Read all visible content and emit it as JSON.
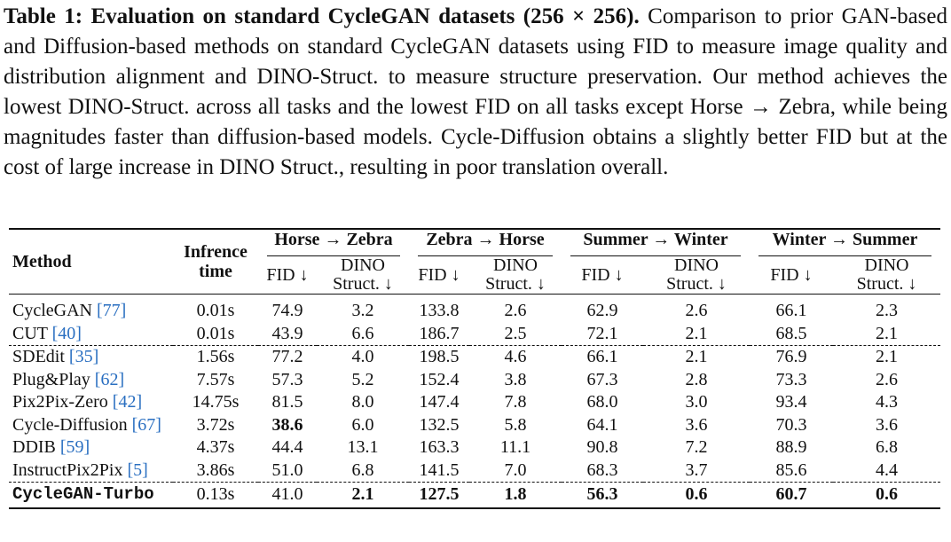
{
  "caption": {
    "title": "Table 1: Evaluation on standard CycleGAN datasets (256 × 256).",
    "text": "Comparison to prior GAN-based and Diffusion-based methods on standard CycleGAN datasets using FID to measure image quality and distribution alignment and DINO-Struct. to measure structure preservation. Our method achieves the lowest DINO-Struct. across all tasks and the lowest FID on all tasks except Horse → Zebra, while being magnitudes faster than diffusion-based models. Cycle-Diffusion obtains a slightly better FID but at the cost of large increase in DINO Struct., resulting in poor translation overall."
  },
  "table": {
    "headers": {
      "method": "Method",
      "time_line1": "Infrence",
      "time_line2": "time",
      "groups": [
        "Horse → Zebra",
        "Zebra → Horse",
        "Summer → Winter",
        "Winter → Summer"
      ],
      "fid": "FID ↓",
      "dino_line1": "DINO",
      "dino_line2": "Struct. ↓"
    },
    "rows": [
      {
        "name": "CycleGAN",
        "cite": "[77]",
        "time": "0.01s",
        "values": [
          "74.9",
          "3.2",
          "133.8",
          "2.6",
          "62.9",
          "2.6",
          "66.1",
          "2.3"
        ]
      },
      {
        "name": "CUT",
        "cite": "[40]",
        "time": "0.01s",
        "values": [
          "43.9",
          "6.6",
          "186.7",
          "2.5",
          "72.1",
          "2.1",
          "68.5",
          "2.1"
        ]
      },
      {
        "name": "SDEdit",
        "cite": "[35]",
        "time": "1.56s",
        "values": [
          "77.2",
          "4.0",
          "198.5",
          "4.6",
          "66.1",
          "2.1",
          "76.9",
          "2.1"
        ]
      },
      {
        "name": "Plug&Play",
        "cite": "[62]",
        "time": "7.57s",
        "values": [
          "57.3",
          "5.2",
          "152.4",
          "3.8",
          "67.3",
          "2.8",
          "73.3",
          "2.6"
        ]
      },
      {
        "name": "Pix2Pix-Zero",
        "cite": "[42]",
        "time": "14.75s",
        "values": [
          "81.5",
          "8.0",
          "147.4",
          "7.8",
          "68.0",
          "3.0",
          "93.4",
          "4.3"
        ]
      },
      {
        "name": "Cycle-Diffusion",
        "cite": "[67]",
        "time": "3.72s",
        "values": [
          "38.6",
          "6.0",
          "132.5",
          "5.8",
          "64.1",
          "3.6",
          "70.3",
          "3.6"
        ]
      },
      {
        "name": "DDIB",
        "cite": "[59]",
        "time": "4.37s",
        "values": [
          "44.4",
          "13.1",
          "163.3",
          "11.1",
          "90.8",
          "7.2",
          "88.9",
          "6.8"
        ]
      },
      {
        "name": "InstructPix2Pix",
        "cite": "[5]",
        "time": "3.86s",
        "values": [
          "51.0",
          "6.8",
          "141.5",
          "7.0",
          "68.3",
          "3.7",
          "85.6",
          "4.4"
        ]
      },
      {
        "name": "CycleGAN-Turbo",
        "cite": "",
        "time": "0.13s",
        "values": [
          "41.0",
          "2.1",
          "127.5",
          "1.8",
          "56.3",
          "0.6",
          "60.7",
          "0.6"
        ]
      }
    ]
  }
}
